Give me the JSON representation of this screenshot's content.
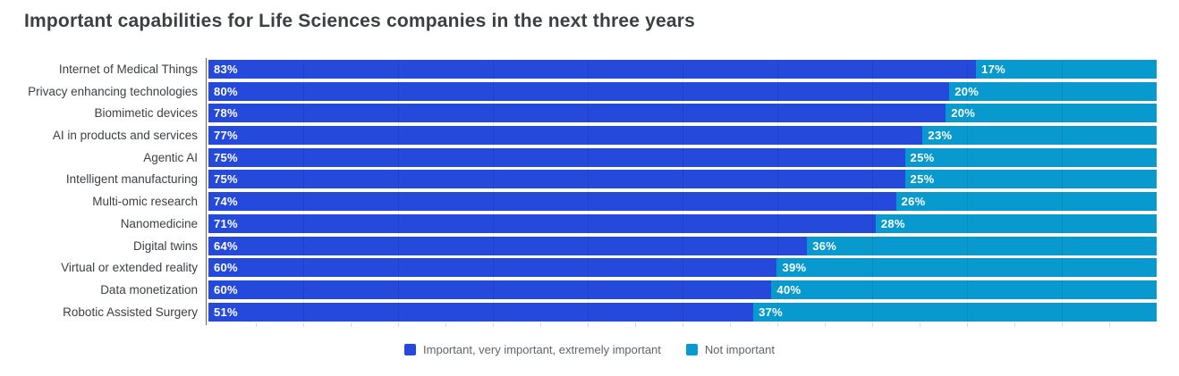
{
  "title": "Important capabilities for Life Sciences companies in the next three years",
  "colors": {
    "important": "#2549DB",
    "not_important": "#089ACF",
    "title_text": "#3c4043",
    "category_text": "#3c4043",
    "legend_text": "#5f6368",
    "axis_line": "#616161",
    "background": "#ffffff"
  },
  "chart_data": {
    "type": "bar",
    "orientation": "horizontal",
    "stacked": true,
    "normalized_rows": true,
    "title": "Important capabilities for Life Sciences companies in the next three years",
    "xlabel": "",
    "ylabel": "",
    "xlim": [
      0,
      100
    ],
    "grid": "faint vertical gridlines every 10%, minor ticks every 5% below axis",
    "legend_position": "bottom-center",
    "value_suffix": "%",
    "categories": [
      "Internet of Medical Things",
      "Privacy enhancing technologies",
      "Biomimetic devices",
      "AI in products and services",
      "Agentic AI",
      "Intelligent manufacturing",
      "Multi-omic research",
      "Nanomedicine",
      "Digital twins",
      "Virtual or extended reality",
      "Data monetization",
      "Robotic Assisted Surgery"
    ],
    "series": [
      {
        "name": "Important, very important, extremely important",
        "color": "#2549DB",
        "values": [
          83,
          80,
          78,
          77,
          75,
          75,
          74,
          71,
          64,
          60,
          60,
          51
        ]
      },
      {
        "name": "Not important",
        "color": "#089ACF",
        "values": [
          17,
          20,
          20,
          23,
          25,
          25,
          26,
          28,
          36,
          39,
          40,
          37
        ]
      }
    ]
  }
}
